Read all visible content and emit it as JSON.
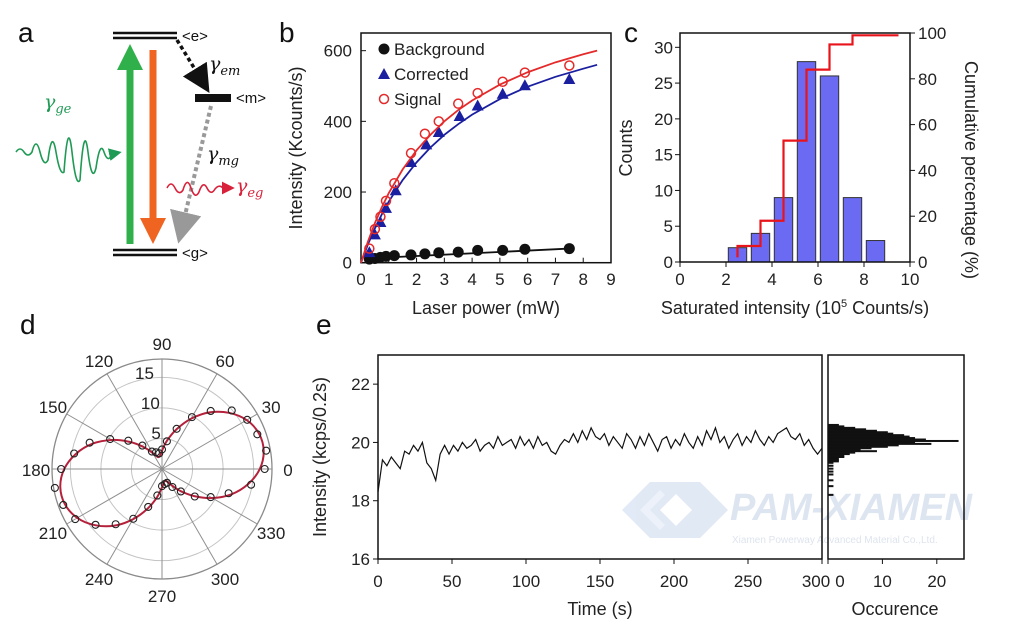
{
  "panel_labels": [
    "a",
    "b",
    "c",
    "d",
    "e"
  ],
  "diagram_a": {
    "levels": {
      "excited": "<e>",
      "metastable": "<m>",
      "ground": "<g>"
    },
    "rates": {
      "ge": {
        "symbol": "γ",
        "sub": "ge",
        "color": "#1f9a55"
      },
      "em": {
        "symbol": "γ",
        "sub": "em",
        "color": "#111111"
      },
      "mg": {
        "symbol": "γ",
        "sub": "mg",
        "color": "#111111"
      },
      "eg": {
        "symbol": "γ",
        "sub": "eg",
        "color": "#d8213a"
      }
    },
    "colors": {
      "excitation_arrow": "#2fb04a",
      "emission_arrow": "#ee6420",
      "nonradiative": "#999999"
    }
  },
  "watermark": {
    "text": "PAM-XIAMEN",
    "subtext": "Xiamen Powerway Advanced Material Co.,Ltd."
  },
  "chart_data": [
    {
      "panel": "b",
      "type": "scatter",
      "xlabel": "Laser power (mW)",
      "ylabel": "Intensity (Kcounts/s)",
      "xlim": [
        0,
        9
      ],
      "ylim": [
        0,
        650
      ],
      "xticks": [
        0,
        1,
        2,
        3,
        4,
        5,
        6,
        7,
        8,
        9
      ],
      "yticks": [
        0,
        200,
        400,
        600
      ],
      "legend_position": "top-left",
      "grid": false,
      "series": [
        {
          "name": "Background",
          "marker": "filled-circle",
          "color": "#111111",
          "x": [
            0.3,
            0.5,
            0.7,
            0.9,
            1.2,
            1.8,
            2.3,
            2.8,
            3.5,
            4.2,
            5.1,
            5.9,
            7.5
          ],
          "y": [
            10,
            12,
            15,
            18,
            20,
            22,
            25,
            28,
            30,
            35,
            35,
            38,
            40
          ],
          "fit": {
            "x": [
              0.2,
              7.5
            ],
            "y": [
              12,
              40
            ]
          }
        },
        {
          "name": "Corrected",
          "marker": "filled-triangle",
          "color": "#1a1fa0",
          "x": [
            0.3,
            0.5,
            0.7,
            0.9,
            1.25,
            1.8,
            2.35,
            2.8,
            3.55,
            4.2,
            5.1,
            5.9,
            7.5
          ],
          "y": [
            30,
            80,
            115,
            155,
            205,
            285,
            335,
            370,
            415,
            445,
            478,
            502,
            520
          ],
          "fit": {
            "x": [
              0,
              0.25,
              0.5,
              0.75,
              1,
              1.5,
              2,
              2.5,
              3,
              3.5,
              4,
              5,
              6,
              7,
              8,
              8.5
            ],
            "y": [
              0,
              52,
              97,
              137,
              173,
              234,
              284,
              326,
              362,
              392,
              419,
              463,
              498,
              526,
              549,
              560
            ]
          }
        },
        {
          "name": "Signal",
          "marker": "open-circle",
          "color": "#e42a2a",
          "x": [
            0.3,
            0.5,
            0.7,
            0.9,
            1.2,
            1.8,
            2.3,
            2.8,
            3.5,
            4.2,
            5.1,
            5.9,
            7.5
          ],
          "y": [
            40,
            95,
            130,
            175,
            225,
            310,
            365,
            400,
            450,
            480,
            512,
            538,
            558
          ],
          "fit": {
            "x": [
              0,
              0.25,
              0.5,
              0.75,
              1,
              1.5,
              2,
              2.5,
              3,
              3.5,
              4,
              5,
              6,
              7,
              8,
              8.5
            ],
            "y": [
              0,
              60,
              112,
              157,
              197,
              264,
              318,
              362,
              400,
              432,
              459,
              504,
              539,
              567,
              590,
              600
            ]
          }
        }
      ]
    },
    {
      "panel": "c",
      "type": "bar",
      "xlabel": "Saturated intensity (10",
      "xlabel_sup": "5",
      "xlabel_tail": " Counts/s)",
      "ylabel": "Counts",
      "y2label": "Cumulative percentage (%)",
      "xlim": [
        0,
        10
      ],
      "ylim": [
        0,
        32
      ],
      "y2lim": [
        0,
        100
      ],
      "xticks": [
        0,
        2,
        4,
        6,
        8,
        10
      ],
      "yticks": [
        0,
        5,
        10,
        15,
        20,
        25,
        30
      ],
      "y2ticks": [
        0,
        20,
        40,
        60,
        80,
        100
      ],
      "bar_color": "#6a6af2",
      "bars": {
        "x": [
          2.5,
          3.5,
          4.5,
          5.5,
          6.5,
          7.5,
          8.5
        ],
        "values": [
          2,
          4,
          9,
          28,
          26,
          9,
          3
        ]
      },
      "cumulative": {
        "color": "#e8141c",
        "start": 2,
        "x": [
          2.5,
          3.5,
          4.5,
          5.5,
          6.5,
          7.5,
          9.5
        ],
        "y": [
          7,
          18,
          53,
          84,
          95,
          99,
          99
        ]
      }
    },
    {
      "panel": "d",
      "type": "polar",
      "rlim": [
        0,
        18
      ],
      "rticks": [
        5,
        10,
        15
      ],
      "angle_ticks": [
        0,
        30,
        60,
        90,
        120,
        150,
        180,
        210,
        240,
        270,
        300,
        330
      ],
      "fit_color": "#b5213a",
      "measured": {
        "angle": [
          0,
          10,
          20,
          30,
          40,
          50,
          60,
          70,
          80,
          90,
          100,
          110,
          120,
          130,
          140,
          150,
          160,
          170,
          180,
          190,
          200,
          210,
          220,
          230,
          240,
          250,
          260,
          270,
          280,
          290,
          300,
          310,
          320,
          330,
          340,
          350
        ],
        "r": [
          16.8,
          17.3,
          16.6,
          16.1,
          14.9,
          12.4,
          9.8,
          7.0,
          4.6,
          3.2,
          2.6,
          2.9,
          3.3,
          5.0,
          7.2,
          9.8,
          12.6,
          14.6,
          16.5,
          17.8,
          17.2,
          16.4,
          14.2,
          11.8,
          9.4,
          6.6,
          4.4,
          2.8,
          2.5,
          2.4,
          3.4,
          4.8,
          7.0,
          9.2,
          11.6,
          14.8
        ]
      },
      "fit": {
        "angle": [
          0,
          10,
          20,
          30,
          40,
          50,
          60,
          70,
          80,
          90,
          100,
          110,
          120,
          130,
          140,
          150,
          160,
          170,
          180,
          190,
          200,
          210,
          220,
          230,
          240,
          250,
          260,
          270,
          280,
          290,
          300,
          310,
          320,
          330,
          340,
          350
        ],
        "r": [
          16.0,
          16.9,
          16.9,
          16.0,
          14.3,
          12.1,
          9.5,
          6.9,
          4.7,
          3.0,
          2.1,
          2.1,
          3.0,
          4.7,
          6.9,
          9.5,
          12.1,
          14.3,
          16.0,
          16.9,
          16.9,
          16.0,
          14.3,
          12.1,
          9.5,
          6.9,
          4.7,
          3.0,
          2.1,
          2.1,
          3.0,
          4.7,
          6.9,
          9.5,
          12.1,
          14.3
        ]
      }
    },
    {
      "panel": "e",
      "type": "line",
      "xlabel": "Time (s)",
      "ylabel": "Intensity (kcps/0.2s)",
      "xlim": [
        0,
        300
      ],
      "ylim": [
        16,
        23
      ],
      "xticks": [
        0,
        50,
        100,
        150,
        200,
        250,
        300
      ],
      "yticks": [
        16,
        18,
        20,
        22
      ],
      "color": "#111111",
      "points": [
        [
          0,
          18.3
        ],
        [
          3,
          19.4
        ],
        [
          6,
          19.2
        ],
        [
          9,
          19.5
        ],
        [
          12,
          19.3
        ],
        [
          15,
          19.1
        ],
        [
          18,
          19.7
        ],
        [
          21,
          19.6
        ],
        [
          24,
          19.9
        ],
        [
          27,
          19.7
        ],
        [
          30,
          20.0
        ],
        [
          33,
          19.3
        ],
        [
          36,
          19.1
        ],
        [
          39,
          18.7
        ],
        [
          42,
          19.6
        ],
        [
          45,
          19.9
        ],
        [
          48,
          19.6
        ],
        [
          51,
          19.9
        ],
        [
          54,
          19.7
        ],
        [
          57,
          20.0
        ],
        [
          60,
          19.8
        ],
        [
          63,
          19.9
        ],
        [
          66,
          20.1
        ],
        [
          69,
          19.7
        ],
        [
          72,
          19.9
        ],
        [
          75,
          20.0
        ],
        [
          78,
          19.8
        ],
        [
          81,
          20.2
        ],
        [
          84,
          19.9
        ],
        [
          87,
          20.0
        ],
        [
          90,
          20.1
        ],
        [
          93,
          19.8
        ],
        [
          96,
          20.2
        ],
        [
          99,
          19.9
        ],
        [
          102,
          20.1
        ],
        [
          105,
          19.8
        ],
        [
          108,
          20.2
        ],
        [
          111,
          19.9
        ],
        [
          114,
          20.0
        ],
        [
          117,
          19.7
        ],
        [
          120,
          19.6
        ],
        [
          123,
          19.9
        ],
        [
          126,
          20.1
        ],
        [
          129,
          20.0
        ],
        [
          132,
          20.3
        ],
        [
          135,
          20.0
        ],
        [
          138,
          20.4
        ],
        [
          141,
          20.1
        ],
        [
          144,
          20.5
        ],
        [
          147,
          20.2
        ],
        [
          150,
          20.1
        ],
        [
          153,
          20.3
        ],
        [
          156,
          19.9
        ],
        [
          159,
          20.2
        ],
        [
          162,
          20.0
        ],
        [
          165,
          19.8
        ],
        [
          168,
          20.3
        ],
        [
          171,
          20.1
        ],
        [
          174,
          19.8
        ],
        [
          177,
          20.2
        ],
        [
          180,
          19.9
        ],
        [
          183,
          20.3
        ],
        [
          186,
          20.0
        ],
        [
          189,
          19.7
        ],
        [
          192,
          20.1
        ],
        [
          195,
          20.2
        ],
        [
          198,
          19.8
        ],
        [
          201,
          20.1
        ],
        [
          204,
          19.9
        ],
        [
          207,
          20.3
        ],
        [
          210,
          20.0
        ],
        [
          213,
          19.8
        ],
        [
          216,
          20.2
        ],
        [
          219,
          19.9
        ],
        [
          222,
          20.4
        ],
        [
          225,
          20.1
        ],
        [
          228,
          20.5
        ],
        [
          231,
          20.0
        ],
        [
          234,
          20.2
        ],
        [
          237,
          19.8
        ],
        [
          240,
          20.1
        ],
        [
          243,
          20.3
        ],
        [
          246,
          19.9
        ],
        [
          249,
          20.2
        ],
        [
          252,
          20.0
        ],
        [
          255,
          20.4
        ],
        [
          258,
          20.1
        ],
        [
          261,
          19.9
        ],
        [
          264,
          20.2
        ],
        [
          267,
          20.0
        ],
        [
          270,
          20.3
        ],
        [
          273,
          20.4
        ],
        [
          276,
          20.5
        ],
        [
          279,
          20.2
        ],
        [
          282,
          20.1
        ],
        [
          285,
          20.3
        ],
        [
          288,
          19.9
        ],
        [
          291,
          20.1
        ],
        [
          294,
          19.8
        ],
        [
          297,
          19.6
        ],
        [
          300,
          19.8
        ]
      ],
      "histogram": {
        "xlabel": "Occurence",
        "xlim": [
          0,
          25
        ],
        "xticks": [
          0,
          10,
          20
        ],
        "intensity": [
          20.6,
          20.55,
          20.5,
          20.45,
          20.4,
          20.35,
          20.3,
          20.25,
          20.2,
          20.15,
          20.1,
          20.05,
          20.0,
          19.95,
          19.9,
          19.85,
          19.8,
          19.75,
          19.7,
          19.65,
          19.6,
          19.55,
          19.5,
          19.45,
          19.4,
          19.35,
          19.3,
          19.2,
          19.1,
          19.0,
          18.9,
          18.7,
          18.5,
          18.2
        ],
        "counts": [
          2,
          3,
          5,
          7,
          9,
          11,
          12,
          14,
          15,
          16,
          18,
          24,
          16,
          19,
          13,
          11,
          8,
          6,
          9,
          5,
          4,
          3,
          3,
          2,
          2,
          2,
          1,
          1,
          1,
          1,
          1,
          1,
          1,
          1
        ]
      }
    }
  ]
}
